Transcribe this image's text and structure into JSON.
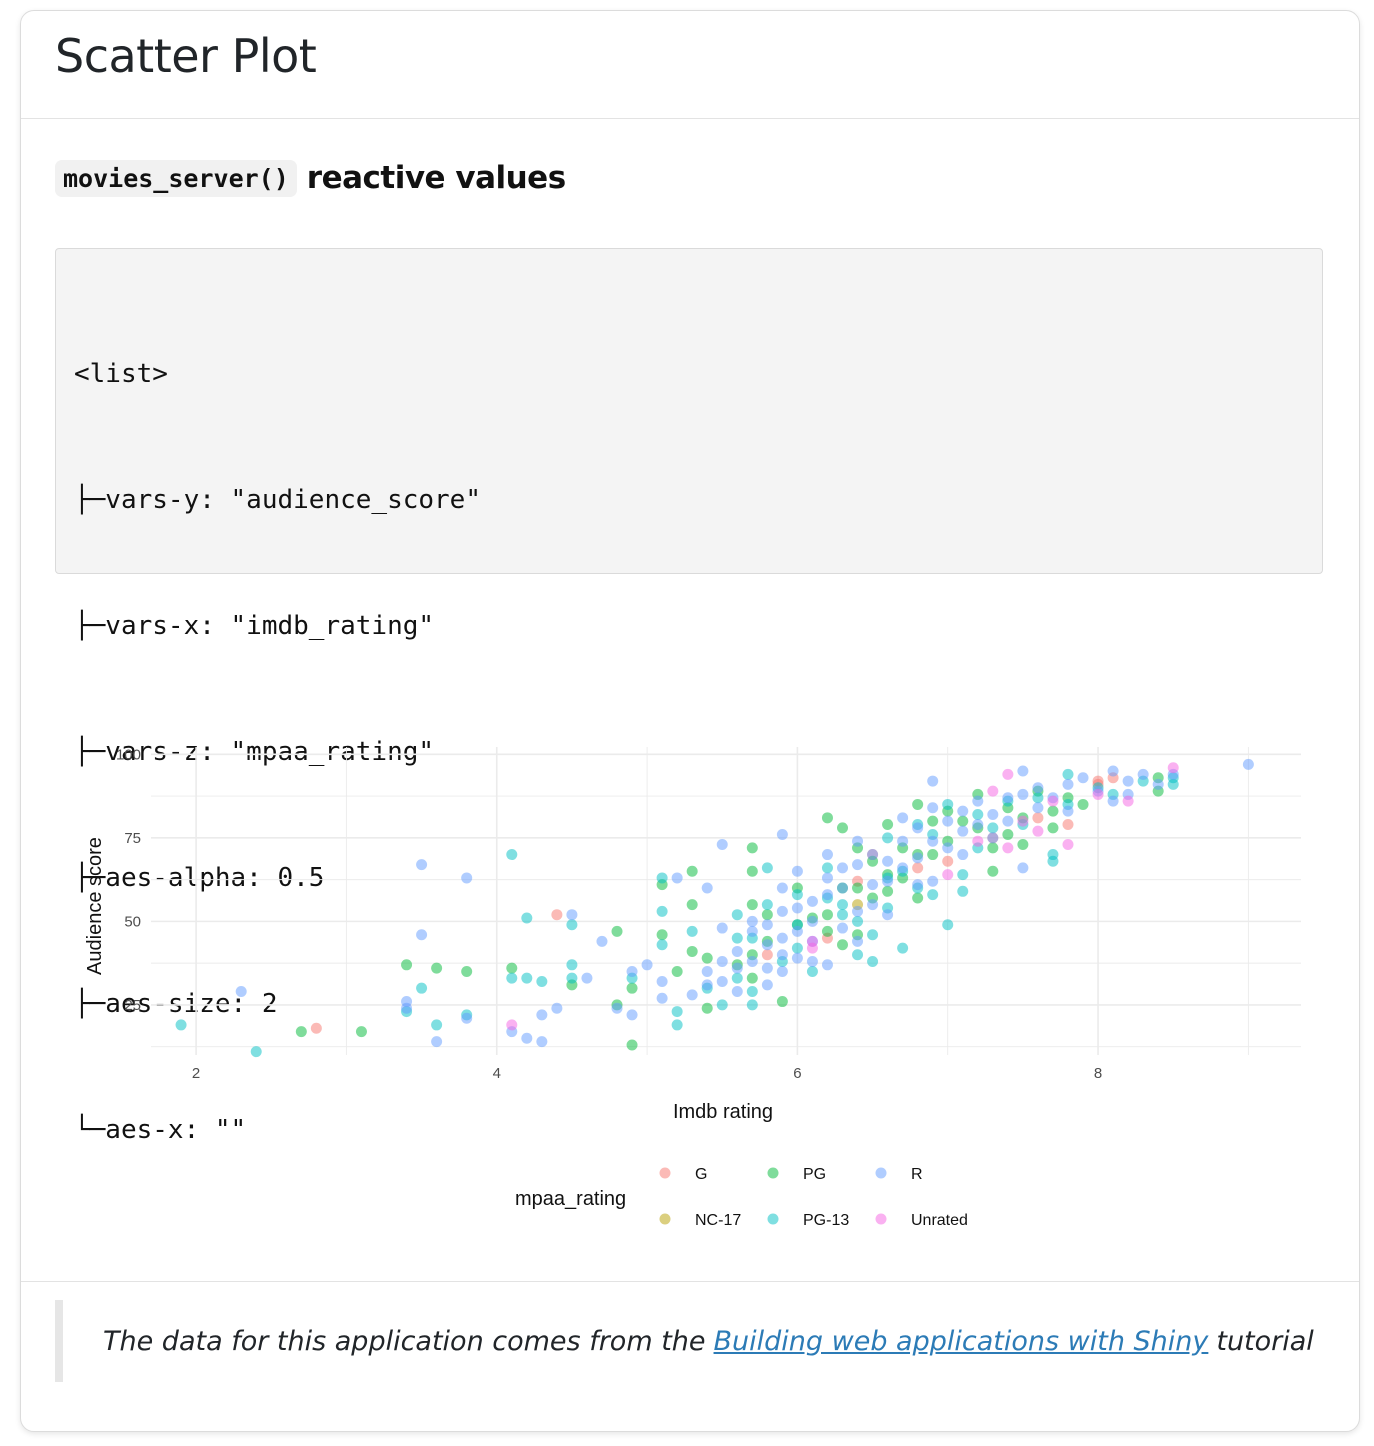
{
  "card": {
    "title": "Scatter Plot"
  },
  "section": {
    "code_label": "movies_server()",
    "heading_text": "reactive values"
  },
  "code_lines": [
    "<list>",
    "├─vars-y: \"audience_score\"",
    "├─vars-x: \"imdb_rating\"",
    "├─vars-z: \"mpaa_rating\"",
    "├─aes-alpha: 0.5",
    "├─aes-size: 2",
    "└─aes-x: \"\""
  ],
  "footer": {
    "text_before": "The data for this application comes from the",
    "link_text": "Building web applications with Shiny",
    "text_after": "tutorial"
  },
  "chart_data": {
    "type": "scatter",
    "xlabel": "Imdb rating",
    "ylabel": "Audience score",
    "xlim": [
      1.7,
      9.35
    ],
    "ylim": [
      10,
      101
    ],
    "xticks": [
      2,
      4,
      6,
      8
    ],
    "yticks": [
      25,
      50,
      75,
      100
    ],
    "grid": true,
    "alpha": 0.5,
    "legend": {
      "title": "mpaa_rating",
      "position": "bottom"
    },
    "series": [
      {
        "name": "G",
        "color": "#F8766D",
        "points": [
          [
            2.8,
            18
          ],
          [
            4.4,
            52
          ],
          [
            5.8,
            40
          ],
          [
            6.2,
            45
          ],
          [
            6.5,
            70
          ],
          [
            6.8,
            66
          ],
          [
            7.0,
            68
          ],
          [
            7.3,
            75
          ],
          [
            7.6,
            81
          ],
          [
            7.8,
            79
          ],
          [
            8.0,
            92
          ],
          [
            8.0,
            91
          ],
          [
            8.1,
            93
          ],
          [
            6.4,
            62
          ]
        ]
      },
      {
        "name": "NC-17",
        "color": "#B79F00",
        "points": [
          [
            6.4,
            55
          ]
        ]
      },
      {
        "name": "PG",
        "color": "#00BA38",
        "points": [
          [
            2.7,
            17
          ],
          [
            3.1,
            17
          ],
          [
            3.4,
            37
          ],
          [
            3.6,
            36
          ],
          [
            3.8,
            35
          ],
          [
            4.1,
            36
          ],
          [
            4.5,
            31
          ],
          [
            4.8,
            47
          ],
          [
            4.8,
            25
          ],
          [
            4.9,
            13
          ],
          [
            4.9,
            30
          ],
          [
            5.1,
            61
          ],
          [
            5.1,
            46
          ],
          [
            5.2,
            35
          ],
          [
            5.3,
            65
          ],
          [
            5.3,
            55
          ],
          [
            5.3,
            41
          ],
          [
            5.4,
            39
          ],
          [
            5.4,
            24
          ],
          [
            5.6,
            37
          ],
          [
            5.7,
            72
          ],
          [
            5.7,
            65
          ],
          [
            5.7,
            55
          ],
          [
            5.7,
            40
          ],
          [
            5.7,
            33
          ],
          [
            5.8,
            52
          ],
          [
            5.8,
            44
          ],
          [
            5.9,
            26
          ],
          [
            6.0,
            49
          ],
          [
            6.1,
            51
          ],
          [
            6.2,
            81
          ],
          [
            6.2,
            47
          ],
          [
            6.3,
            78
          ],
          [
            6.3,
            60
          ],
          [
            6.3,
            43
          ],
          [
            6.4,
            72
          ],
          [
            6.4,
            60
          ],
          [
            6.4,
            46
          ],
          [
            6.5,
            68
          ],
          [
            6.5,
            57
          ],
          [
            6.6,
            79
          ],
          [
            6.6,
            59
          ],
          [
            6.7,
            72
          ],
          [
            6.7,
            63
          ],
          [
            6.8,
            85
          ],
          [
            6.8,
            70
          ],
          [
            6.8,
            57
          ],
          [
            6.9,
            80
          ],
          [
            6.9,
            70
          ],
          [
            7.0,
            83
          ],
          [
            7.0,
            74
          ],
          [
            7.1,
            80
          ],
          [
            7.2,
            88
          ],
          [
            7.2,
            78
          ],
          [
            7.3,
            72
          ],
          [
            7.3,
            65
          ],
          [
            7.4,
            84
          ],
          [
            7.4,
            76
          ],
          [
            7.5,
            81
          ],
          [
            7.5,
            73
          ],
          [
            7.6,
            89
          ],
          [
            7.7,
            83
          ],
          [
            7.7,
            78
          ],
          [
            7.8,
            87
          ],
          [
            7.9,
            85
          ],
          [
            8.4,
            89
          ],
          [
            8.4,
            93
          ],
          [
            6.6,
            64
          ],
          [
            6.2,
            52
          ],
          [
            6.0,
            60
          ]
        ]
      },
      {
        "name": "PG-13",
        "color": "#00BFC4",
        "points": [
          [
            1.9,
            19
          ],
          [
            2.4,
            11
          ],
          [
            3.4,
            23
          ],
          [
            3.5,
            30
          ],
          [
            3.6,
            19
          ],
          [
            3.8,
            22
          ],
          [
            4.1,
            70
          ],
          [
            4.1,
            33
          ],
          [
            4.2,
            51
          ],
          [
            4.2,
            33
          ],
          [
            4.3,
            32
          ],
          [
            4.5,
            49
          ],
          [
            4.5,
            37
          ],
          [
            4.5,
            33
          ],
          [
            4.9,
            33
          ],
          [
            5.1,
            53
          ],
          [
            5.1,
            43
          ],
          [
            5.1,
            63
          ],
          [
            5.2,
            23
          ],
          [
            5.2,
            19
          ],
          [
            5.3,
            47
          ],
          [
            5.4,
            30
          ],
          [
            5.5,
            25
          ],
          [
            5.6,
            52
          ],
          [
            5.6,
            45
          ],
          [
            5.6,
            33
          ],
          [
            5.7,
            45
          ],
          [
            5.7,
            29
          ],
          [
            5.7,
            25
          ],
          [
            5.8,
            66
          ],
          [
            5.8,
            55
          ],
          [
            5.9,
            38
          ],
          [
            6.0,
            58
          ],
          [
            6.0,
            49
          ],
          [
            6.0,
            42
          ],
          [
            6.1,
            35
          ],
          [
            6.2,
            57
          ],
          [
            6.2,
            66
          ],
          [
            6.3,
            52
          ],
          [
            6.4,
            50
          ],
          [
            6.4,
            40
          ],
          [
            6.5,
            46
          ],
          [
            6.5,
            38
          ],
          [
            6.6,
            75
          ],
          [
            6.6,
            63
          ],
          [
            6.7,
            65
          ],
          [
            6.7,
            42
          ],
          [
            6.8,
            79
          ],
          [
            6.8,
            60
          ],
          [
            6.9,
            76
          ],
          [
            6.9,
            58
          ],
          [
            7.0,
            85
          ],
          [
            7.0,
            49
          ],
          [
            7.1,
            64
          ],
          [
            7.1,
            59
          ],
          [
            7.2,
            82
          ],
          [
            7.3,
            78
          ],
          [
            7.4,
            86
          ],
          [
            7.5,
            79
          ],
          [
            7.6,
            87
          ],
          [
            7.7,
            68
          ],
          [
            7.7,
            70
          ],
          [
            7.8,
            94
          ],
          [
            7.8,
            85
          ],
          [
            8.0,
            90
          ],
          [
            8.1,
            88
          ],
          [
            8.3,
            92
          ],
          [
            8.5,
            91
          ],
          [
            8.5,
            93
          ],
          [
            6.3,
            55
          ],
          [
            6.6,
            54
          ],
          [
            7.2,
            72
          ]
        ]
      },
      {
        "name": "R",
        "color": "#619CFF",
        "points": [
          [
            2.3,
            29
          ],
          [
            3.4,
            26
          ],
          [
            3.4,
            24
          ],
          [
            3.5,
            67
          ],
          [
            3.5,
            46
          ],
          [
            3.6,
            14
          ],
          [
            3.8,
            63
          ],
          [
            3.8,
            21
          ],
          [
            4.1,
            17
          ],
          [
            4.2,
            15
          ],
          [
            4.3,
            22
          ],
          [
            4.3,
            14
          ],
          [
            4.4,
            24
          ],
          [
            4.5,
            52
          ],
          [
            4.6,
            33
          ],
          [
            4.7,
            44
          ],
          [
            4.8,
            24
          ],
          [
            4.9,
            35
          ],
          [
            4.9,
            22
          ],
          [
            5.0,
            37
          ],
          [
            5.1,
            32
          ],
          [
            5.1,
            27
          ],
          [
            5.2,
            63
          ],
          [
            5.3,
            28
          ],
          [
            5.4,
            60
          ],
          [
            5.4,
            35
          ],
          [
            5.4,
            31
          ],
          [
            5.5,
            73
          ],
          [
            5.5,
            48
          ],
          [
            5.5,
            38
          ],
          [
            5.5,
            32
          ],
          [
            5.6,
            41
          ],
          [
            5.6,
            36
          ],
          [
            5.6,
            29
          ],
          [
            5.7,
            50
          ],
          [
            5.7,
            47
          ],
          [
            5.7,
            38
          ],
          [
            5.8,
            49
          ],
          [
            5.8,
            43
          ],
          [
            5.8,
            36
          ],
          [
            5.8,
            31
          ],
          [
            5.9,
            76
          ],
          [
            5.9,
            60
          ],
          [
            5.9,
            53
          ],
          [
            5.9,
            45
          ],
          [
            5.9,
            40
          ],
          [
            5.9,
            35
          ],
          [
            6.0,
            65
          ],
          [
            6.0,
            54
          ],
          [
            6.0,
            47
          ],
          [
            6.0,
            39
          ],
          [
            6.1,
            56
          ],
          [
            6.1,
            50
          ],
          [
            6.1,
            44
          ],
          [
            6.1,
            38
          ],
          [
            6.2,
            70
          ],
          [
            6.2,
            63
          ],
          [
            6.2,
            58
          ],
          [
            6.2,
            37
          ],
          [
            6.3,
            66
          ],
          [
            6.3,
            60
          ],
          [
            6.3,
            48
          ],
          [
            6.4,
            74
          ],
          [
            6.4,
            67
          ],
          [
            6.4,
            53
          ],
          [
            6.4,
            44
          ],
          [
            6.5,
            70
          ],
          [
            6.5,
            61
          ],
          [
            6.5,
            55
          ],
          [
            6.6,
            68
          ],
          [
            6.6,
            62
          ],
          [
            6.6,
            52
          ],
          [
            6.7,
            81
          ],
          [
            6.7,
            74
          ],
          [
            6.7,
            66
          ],
          [
            6.8,
            78
          ],
          [
            6.8,
            69
          ],
          [
            6.8,
            61
          ],
          [
            6.9,
            92
          ],
          [
            6.9,
            84
          ],
          [
            6.9,
            74
          ],
          [
            6.9,
            62
          ],
          [
            7.0,
            80
          ],
          [
            7.0,
            72
          ],
          [
            7.1,
            83
          ],
          [
            7.1,
            77
          ],
          [
            7.1,
            70
          ],
          [
            7.2,
            86
          ],
          [
            7.2,
            79
          ],
          [
            7.3,
            82
          ],
          [
            7.3,
            75
          ],
          [
            7.4,
            87
          ],
          [
            7.4,
            80
          ],
          [
            7.5,
            95
          ],
          [
            7.5,
            88
          ],
          [
            7.5,
            66
          ],
          [
            7.6,
            90
          ],
          [
            7.6,
            84
          ],
          [
            7.7,
            87
          ],
          [
            7.8,
            91
          ],
          [
            7.8,
            83
          ],
          [
            7.9,
            93
          ],
          [
            8.0,
            89
          ],
          [
            8.1,
            95
          ],
          [
            8.1,
            86
          ],
          [
            8.2,
            92
          ],
          [
            8.2,
            88
          ],
          [
            8.3,
            94
          ],
          [
            8.4,
            91
          ],
          [
            8.5,
            94
          ],
          [
            9.0,
            97
          ]
        ]
      },
      {
        "name": "Unrated",
        "color": "#F564E3",
        "points": [
          [
            4.1,
            19
          ],
          [
            6.1,
            44
          ],
          [
            7.0,
            64
          ],
          [
            7.2,
            74
          ],
          [
            7.3,
            89
          ],
          [
            7.4,
            94
          ],
          [
            7.4,
            72
          ],
          [
            7.5,
            80
          ],
          [
            7.6,
            77
          ],
          [
            7.7,
            86
          ],
          [
            7.8,
            73
          ],
          [
            8.0,
            88
          ],
          [
            8.2,
            86
          ],
          [
            8.5,
            96
          ],
          [
            6.1,
            42
          ]
        ]
      }
    ]
  }
}
